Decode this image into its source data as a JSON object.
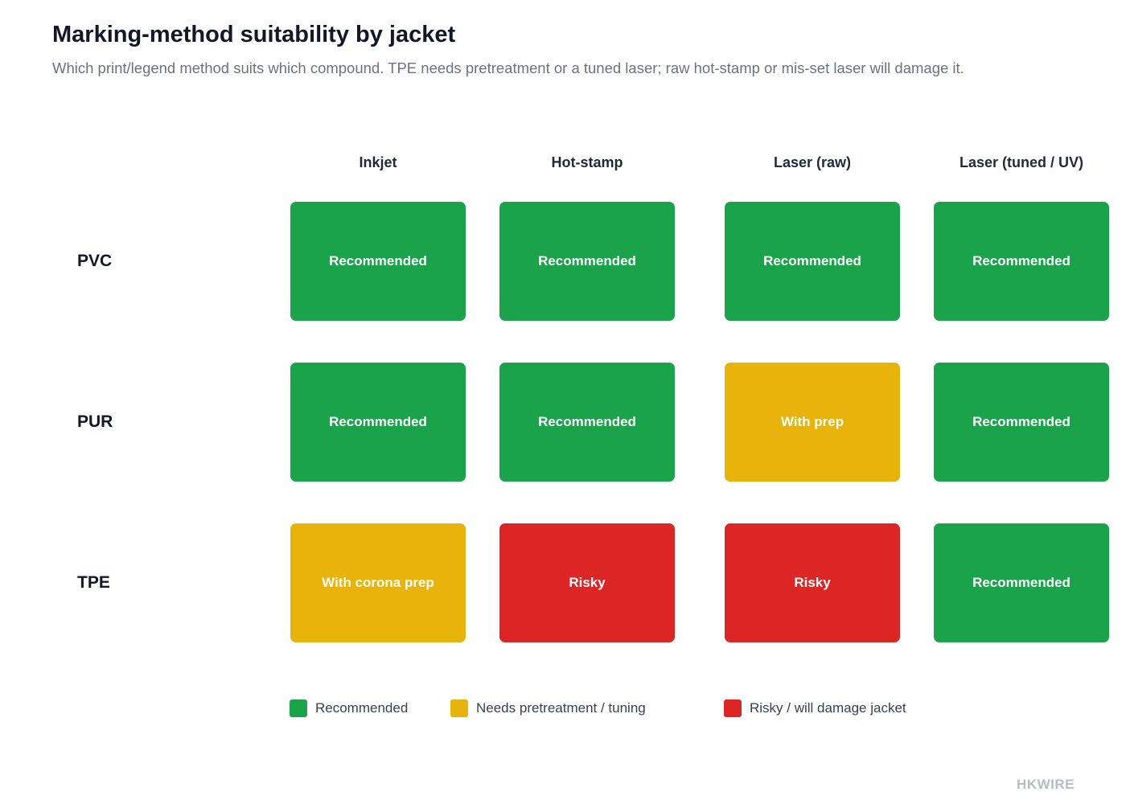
{
  "header": {
    "title": "Marking-method suitability by jacket",
    "subtitle": "Which print/legend method suits which compound. TPE needs pretreatment or a tuned laser; raw hot-stamp or mis-set laser will damage it."
  },
  "chart_data": {
    "type": "heatmap",
    "title": "Marking-method suitability by jacket",
    "subtitle": "Which print/legend method suits which compound. TPE needs pretreatment or a tuned laser; raw hot-stamp or mis-set laser will damage it.",
    "columns": [
      "Inkjet",
      "Hot-stamp",
      "Laser (raw)",
      "Laser (tuned / UV)"
    ],
    "rows": [
      "PVC",
      "PUR",
      "TPE"
    ],
    "cells": [
      [
        {
          "label": "Recommended",
          "status": "recommended"
        },
        {
          "label": "Recommended",
          "status": "recommended"
        },
        {
          "label": "Recommended",
          "status": "recommended"
        },
        {
          "label": "Recommended",
          "status": "recommended"
        }
      ],
      [
        {
          "label": "Recommended",
          "status": "recommended"
        },
        {
          "label": "Recommended",
          "status": "recommended"
        },
        {
          "label": "With prep",
          "status": "prep"
        },
        {
          "label": "Recommended",
          "status": "recommended"
        }
      ],
      [
        {
          "label": "With corona prep",
          "status": "prep"
        },
        {
          "label": "Risky",
          "status": "risky"
        },
        {
          "label": "Risky",
          "status": "risky"
        },
        {
          "label": "Recommended",
          "status": "recommended"
        }
      ]
    ],
    "legend": [
      {
        "status": "recommended",
        "label": "Recommended",
        "color": "#1aa34a"
      },
      {
        "status": "prep",
        "label": "Needs pretreatment / tuning",
        "color": "#e8b30b"
      },
      {
        "status": "risky",
        "label": "Risky / will damage jacket",
        "color": "#dc2626"
      }
    ],
    "legend_position": "bottom",
    "grid": false
  },
  "footer": {
    "brand": "HKWIRE"
  }
}
